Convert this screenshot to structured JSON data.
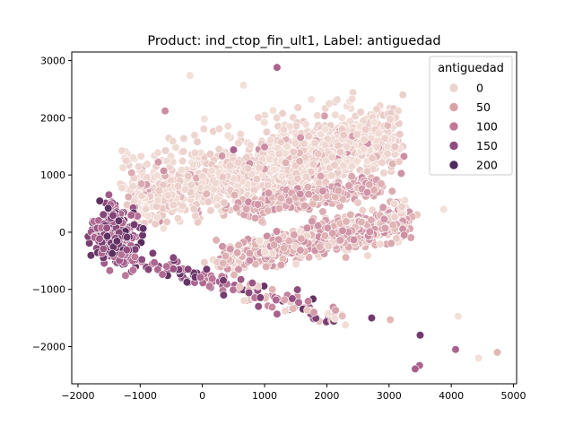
{
  "chart_data": {
    "type": "scatter",
    "title": "Product: ind_ctop_fin_ult1, Label: antiguedad",
    "xlabel": "",
    "ylabel": "",
    "xlim": [
      -2100,
      5050
    ],
    "ylim": [
      -2650,
      3150
    ],
    "xticks": [
      -2000,
      -1000,
      0,
      1000,
      2000,
      3000,
      4000,
      5000
    ],
    "yticks": [
      -2000,
      -1000,
      0,
      1000,
      2000,
      3000
    ],
    "xtick_labels": [
      "−2000",
      "−1000",
      "0",
      "1000",
      "2000",
      "3000",
      "4000",
      "5000"
    ],
    "ytick_labels": [
      "−2000",
      "−1000",
      "0",
      "1000",
      "2000",
      "3000"
    ],
    "grid": false,
    "legend": {
      "title": "antiguedad",
      "placement": "top-right",
      "entries": [
        {
          "label": "0",
          "color": "#ecd3ce"
        },
        {
          "label": "50",
          "color": "#d9a3a8"
        },
        {
          "label": "100",
          "color": "#c07a97"
        },
        {
          "label": "150",
          "color": "#8f4d7f"
        },
        {
          "label": "200",
          "color": "#4e2a5e"
        }
      ]
    },
    "hue_scale": {
      "min": 0,
      "max": 250,
      "stops": [
        "#f3e0d9",
        "#e2b8b7",
        "#cb8ca2",
        "#a9628e",
        "#74396e",
        "#3f2450"
      ]
    },
    "outliers": [
      {
        "x": 1200,
        "y": 2880,
        "hue": 150
      },
      {
        "x": -200,
        "y": 2740,
        "hue": 0
      },
      {
        "x": 660,
        "y": 2570,
        "hue": 0
      },
      {
        "x": 1750,
        "y": 2320,
        "hue": 0
      },
      {
        "x": -600,
        "y": 2120,
        "hue": 100
      },
      {
        "x": 30,
        "y": 1980,
        "hue": 0
      },
      {
        "x": 500,
        "y": 1440,
        "hue": 150
      },
      {
        "x": 1000,
        "y": 1490,
        "hue": 100
      },
      {
        "x": 3880,
        "y": 400,
        "hue": 0
      },
      {
        "x": 4110,
        "y": -1470,
        "hue": 0
      },
      {
        "x": 1200,
        "y": -1430,
        "hue": 150
      },
      {
        "x": 2720,
        "y": -1500,
        "hue": 200
      },
      {
        "x": 3020,
        "y": -1530,
        "hue": 50
      },
      {
        "x": 3500,
        "y": -1800,
        "hue": 200
      },
      {
        "x": 4070,
        "y": -2050,
        "hue": 150
      },
      {
        "x": 4740,
        "y": -2100,
        "hue": 50
      },
      {
        "x": 4440,
        "y": -2200,
        "hue": 0
      },
      {
        "x": 3490,
        "y": -2330,
        "hue": 150
      },
      {
        "x": 3420,
        "y": -2390,
        "hue": 150
      }
    ]
  }
}
